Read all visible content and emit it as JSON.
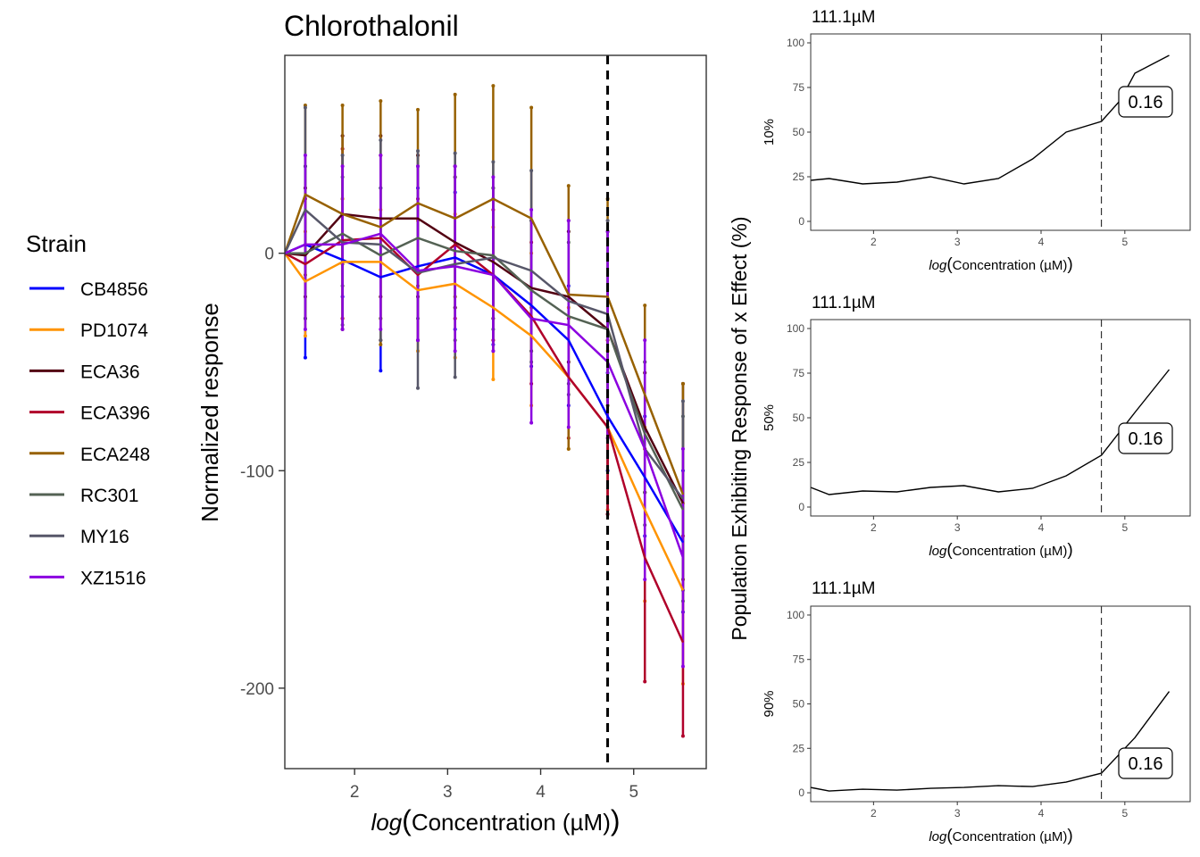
{
  "chart_data": [
    {
      "type": "line",
      "title": "Chlorothalonil",
      "xlabel": "log(Concentration (µM))",
      "xlabel_prefix": "log",
      "xlabel_rest": "Concentration (µM)",
      "ylabel": "Normalized response",
      "xlim": [
        1.25,
        5.78
      ],
      "ylim": [
        -237,
        91
      ],
      "x_ticks": [
        2,
        3,
        4,
        5
      ],
      "y_ticks": [
        0,
        -100,
        -200
      ],
      "grid": false,
      "vline": 4.72,
      "legend": {
        "title": "Strain",
        "position": "left"
      },
      "x": [
        1.25,
        1.47,
        1.87,
        2.28,
        2.68,
        3.08,
        3.49,
        3.9,
        4.3,
        4.72,
        5.12,
        5.53
      ],
      "series": [
        {
          "name": "CB4856",
          "color": "#0000FF",
          "values": [
            0,
            4,
            -3,
            -11,
            -6,
            -2,
            -10,
            -24,
            -40,
            -75,
            -103,
            -133
          ],
          "lower": [
            0,
            -48,
            -20,
            -54,
            -40,
            -35,
            -42,
            -52,
            -70,
            -100,
            -130,
            -165
          ],
          "upper": [
            0,
            40,
            25,
            30,
            30,
            28,
            25,
            15,
            -15,
            -55,
            -75,
            -100
          ]
        },
        {
          "name": "PD1074",
          "color": "#FF9400",
          "values": [
            0,
            -13,
            -4,
            -4,
            -17,
            -14,
            -25,
            -38,
            -57,
            -80,
            -118,
            -155
          ],
          "lower": [
            0,
            -38,
            -30,
            -30,
            -45,
            -48,
            -58,
            -70,
            -90,
            -118,
            -160,
            -198
          ],
          "upper": [
            0,
            10,
            25,
            20,
            15,
            18,
            12,
            0,
            -25,
            -45,
            -80,
            -115
          ]
        },
        {
          "name": "ECA36",
          "color": "#520012",
          "values": [
            0,
            -1,
            18,
            16,
            16,
            5,
            -4,
            -16,
            -20,
            -35,
            -80,
            -115
          ],
          "lower": [
            0,
            -20,
            -35,
            -20,
            -20,
            -25,
            -30,
            -45,
            -50,
            -120,
            -110,
            -150
          ],
          "upper": [
            0,
            30,
            54,
            54,
            45,
            40,
            30,
            15,
            10,
            10,
            -55,
            -60
          ]
        },
        {
          "name": "ECA396",
          "color": "#B0002A",
          "values": [
            0,
            -5,
            6,
            7,
            -10,
            4,
            -10,
            -29,
            -57,
            -80,
            -140,
            -179
          ],
          "lower": [
            0,
            -30,
            -30,
            -40,
            -40,
            -30,
            -40,
            -60,
            -85,
            -120,
            -197,
            -222
          ],
          "upper": [
            0,
            25,
            48,
            45,
            25,
            35,
            20,
            5,
            -30,
            -40,
            -90,
            -130
          ]
        },
        {
          "name": "ECA248",
          "color": "#976100",
          "values": [
            0,
            27,
            18,
            12,
            23,
            16,
            25,
            16,
            -19,
            -20,
            -65,
            -111
          ],
          "lower": [
            0,
            -10,
            -5,
            -42,
            -15,
            -20,
            -10,
            -25,
            -90,
            -70,
            -110,
            -150
          ],
          "upper": [
            0,
            68,
            68,
            70,
            66,
            73,
            77,
            67,
            31,
            25,
            -24,
            -60
          ]
        },
        {
          "name": "RC301",
          "color": "#546254",
          "values": [
            0,
            0,
            9,
            -1,
            7,
            1,
            -1,
            -17,
            -29,
            -35,
            -83,
            -118
          ],
          "lower": [
            0,
            -30,
            -15,
            -30,
            -30,
            -40,
            -35,
            -45,
            -60,
            -80,
            -110,
            -160
          ],
          "upper": [
            0,
            40,
            35,
            30,
            40,
            35,
            30,
            15,
            5,
            10,
            -50,
            -75
          ]
        },
        {
          "name": "MY16",
          "color": "#575769",
          "values": [
            0,
            20,
            5,
            4,
            -9,
            -5,
            -2,
            -8,
            -22,
            -28,
            -90,
            -113
          ],
          "lower": [
            0,
            -30,
            -33,
            -40,
            -62,
            -57,
            -45,
            -50,
            -65,
            -80,
            -125,
            -155
          ],
          "upper": [
            0,
            67,
            45,
            52,
            47,
            46,
            42,
            38,
            15,
            15,
            -50,
            -68
          ]
        },
        {
          "name": "XZ1516",
          "color": "#8B00E0",
          "values": [
            0,
            4,
            4,
            9,
            -8,
            -6,
            -10,
            -30,
            -33,
            -50,
            -90,
            -140
          ],
          "lower": [
            0,
            -35,
            -35,
            -35,
            -40,
            -45,
            -45,
            -78,
            -80,
            -85,
            -150,
            -190
          ],
          "upper": [
            0,
            45,
            40,
            45,
            40,
            40,
            35,
            20,
            15,
            10,
            -40,
            -90
          ]
        }
      ]
    },
    {
      "type": "line",
      "title": "111.1µM",
      "ylabel": "10%",
      "xlabel_prefix": "log",
      "xlabel_rest": "Concentration (µM)",
      "xlim": [
        1.25,
        5.78
      ],
      "ylim": [
        -5,
        105
      ],
      "x_ticks": [
        2,
        3,
        4,
        5
      ],
      "y_ticks": [
        0,
        25,
        50,
        75,
        100
      ],
      "vline": 4.72,
      "annotation": "0.16",
      "x": [
        1.25,
        1.47,
        1.87,
        2.28,
        2.68,
        3.08,
        3.49,
        3.9,
        4.3,
        4.72,
        4.95,
        5.12,
        5.53
      ],
      "values": [
        23,
        24,
        21,
        22,
        25,
        21,
        24,
        35,
        50,
        56,
        68,
        83,
        93
      ]
    },
    {
      "type": "line",
      "title": "111.1µM",
      "ylabel": "50%",
      "xlabel_prefix": "log",
      "xlabel_rest": "Concentration (µM)",
      "xlim": [
        1.25,
        5.78
      ],
      "ylim": [
        -5,
        105
      ],
      "x_ticks": [
        2,
        3,
        4,
        5
      ],
      "y_ticks": [
        0,
        25,
        50,
        75,
        100
      ],
      "vline": 4.72,
      "annotation": "0.16",
      "x": [
        1.25,
        1.47,
        1.87,
        2.28,
        2.68,
        3.08,
        3.49,
        3.9,
        4.3,
        4.72,
        5.12,
        5.53
      ],
      "values": [
        11,
        7,
        9,
        8.5,
        11,
        12,
        8.5,
        10.5,
        17.5,
        29,
        53,
        77
      ]
    },
    {
      "type": "line",
      "title": "111.1µM",
      "ylabel": "90%",
      "xlabel_prefix": "log",
      "xlabel_rest": "Concentration (µM)",
      "xlim": [
        1.25,
        5.78
      ],
      "ylim": [
        -5,
        105
      ],
      "x_ticks": [
        2,
        3,
        4,
        5
      ],
      "y_ticks": [
        0,
        25,
        50,
        75,
        100
      ],
      "vline": 4.72,
      "annotation": "0.16",
      "x": [
        1.25,
        1.47,
        1.87,
        2.28,
        2.68,
        3.08,
        3.49,
        3.9,
        4.3,
        4.72,
        5.12,
        5.53
      ],
      "values": [
        3,
        1,
        2,
        1.5,
        2.5,
        3,
        4,
        3.5,
        6,
        11,
        31,
        57
      ]
    }
  ],
  "shared_ylabel": "Population Exhibiting Response of x Effect (%)"
}
